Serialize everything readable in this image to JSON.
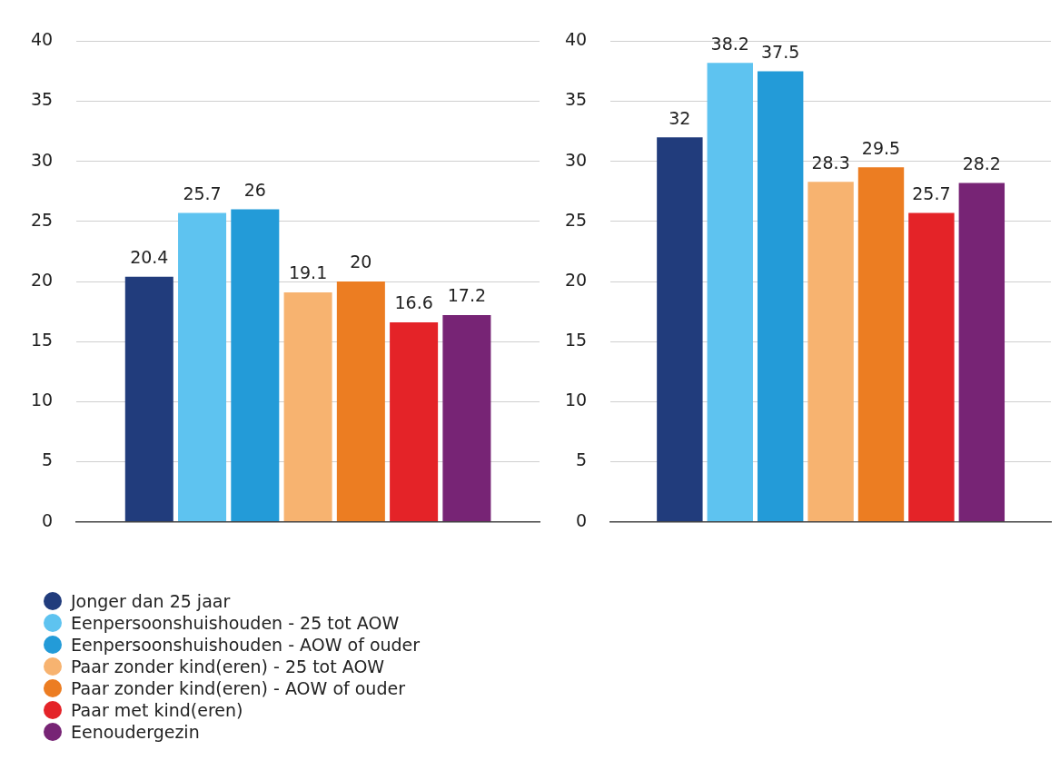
{
  "chart_data": [
    {
      "type": "bar",
      "categories": [
        null
      ],
      "ylim": [
        0,
        40
      ],
      "yticks": [
        0,
        5,
        10,
        15,
        20,
        25,
        30,
        35,
        40
      ],
      "grid": "y",
      "data_labels": true,
      "legend": "bottom left",
      "series": [
        {
          "name": "Jonger dan 25 jaar",
          "color": "#213c7c",
          "values": [
            20.4
          ]
        },
        {
          "name": "Eenpersoonshuishouden - 25 tot AOW",
          "color": "#5ec3f0",
          "values": [
            25.7
          ]
        },
        {
          "name": "Eenpersoonshuishouden  - AOW of ouder",
          "color": "#239bd8",
          "values": [
            26
          ]
        },
        {
          "name": "Paar zonder kind(eren) - 25 tot AOW",
          "color": "#f7b370",
          "values": [
            19.1
          ]
        },
        {
          "name": "Paar zonder kind(eren) - AOW of ouder",
          "color": "#ec7d22",
          "values": [
            20
          ]
        },
        {
          "name": "Paar met kind(eren)",
          "color": "#e42328",
          "values": [
            16.6
          ]
        },
        {
          "name": "Eenoudergezin",
          "color": "#772475",
          "values": [
            17.2
          ]
        }
      ]
    },
    {
      "type": "bar",
      "categories": [
        null
      ],
      "ylim": [
        0,
        40
      ],
      "yticks": [
        0,
        5,
        10,
        15,
        20,
        25,
        30,
        35,
        40
      ],
      "grid": "y",
      "data_labels": true,
      "series": [
        {
          "color": "#213c7c",
          "values": [
            32
          ]
        },
        {
          "color": "#5ec3f0",
          "values": [
            38.2
          ]
        },
        {
          "color": "#239bd8",
          "values": [
            37.5
          ]
        },
        {
          "color": "#f7b370",
          "values": [
            28.3
          ]
        },
        {
          "color": "#ec7d22",
          "values": [
            29.5
          ]
        },
        {
          "color": "#e42328",
          "values": [
            25.7
          ]
        },
        {
          "color": "#772475",
          "values": [
            28.2
          ]
        }
      ]
    }
  ]
}
